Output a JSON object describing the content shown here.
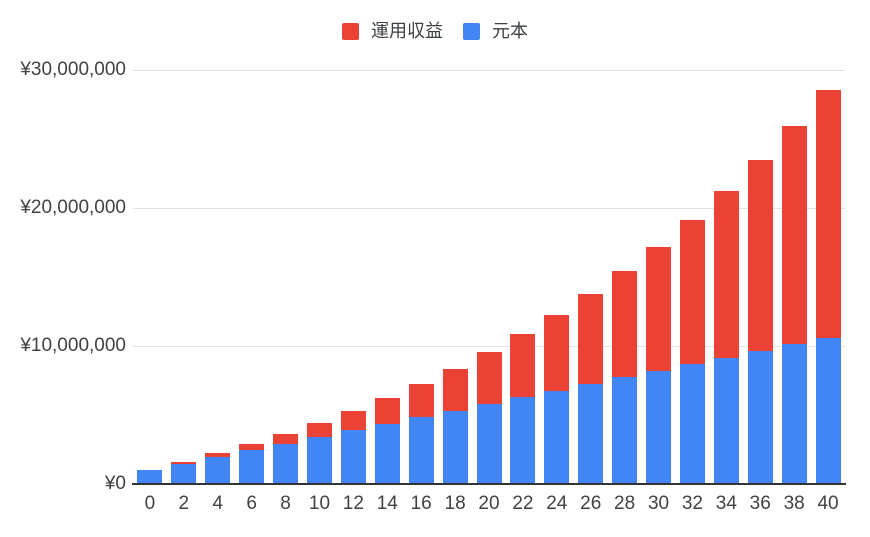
{
  "page": {
    "background": "#ffffff"
  },
  "colors": {
    "profit_red": "#ea4335",
    "principal_blue": "#4285f4",
    "gridline": "#e3e3e3",
    "axis_line": "#333333",
    "tick_text": "#424242",
    "legend_text": "#3c4043"
  },
  "legend": [
    {
      "key": "profit",
      "label": "運用収益",
      "color": "#ea4335"
    },
    {
      "key": "principal",
      "label": "元本",
      "color": "#4285f4"
    }
  ],
  "chart_data": {
    "type": "bar",
    "stacked": true,
    "title": "",
    "xlabel": "",
    "ylabel": "",
    "grid": true,
    "legend_position": "top",
    "ylim": [
      0,
      30000000
    ],
    "y_ticks": [
      {
        "value": 0,
        "label": "¥0"
      },
      {
        "value": 10000000,
        "label": "¥10,000,000"
      },
      {
        "value": 20000000,
        "label": "¥20,000,000"
      },
      {
        "value": 30000000,
        "label": "¥30,000,000"
      }
    ],
    "categories": [
      "0",
      "2",
      "4",
      "6",
      "8",
      "10",
      "12",
      "14",
      "16",
      "18",
      "20",
      "22",
      "24",
      "26",
      "28",
      "30",
      "32",
      "34",
      "36",
      "38",
      "40"
    ],
    "series": [
      {
        "name": "元本",
        "key": "principal",
        "color": "#4285f4",
        "values": [
          1000000,
          1480000,
          1960000,
          2440000,
          2920000,
          3400000,
          3880000,
          4360000,
          4840000,
          5320000,
          5800000,
          6280000,
          6760000,
          7240000,
          7720000,
          8200000,
          8680000,
          9160000,
          9640000,
          10120000,
          10600000
        ]
      },
      {
        "name": "運用収益",
        "key": "profit",
        "color": "#ea4335",
        "values": [
          0,
          102000,
          252000,
          455000,
          715000,
          1036000,
          1424000,
          1884000,
          2422000,
          3044000,
          3759000,
          4573000,
          5494000,
          6532000,
          7696000,
          8996000,
          10445000,
          12054000,
          13837000,
          15808000,
          17983000
        ]
      }
    ],
    "totals": [
      1000000,
      1582000,
      2212000,
      2895000,
      3635000,
      4436000,
      5304000,
      6244000,
      7262000,
      8364000,
      9559000,
      10853000,
      12254000,
      13772000,
      15416000,
      17196000,
      19125000,
      21214000,
      23477000,
      25928000,
      28583000
    ]
  }
}
